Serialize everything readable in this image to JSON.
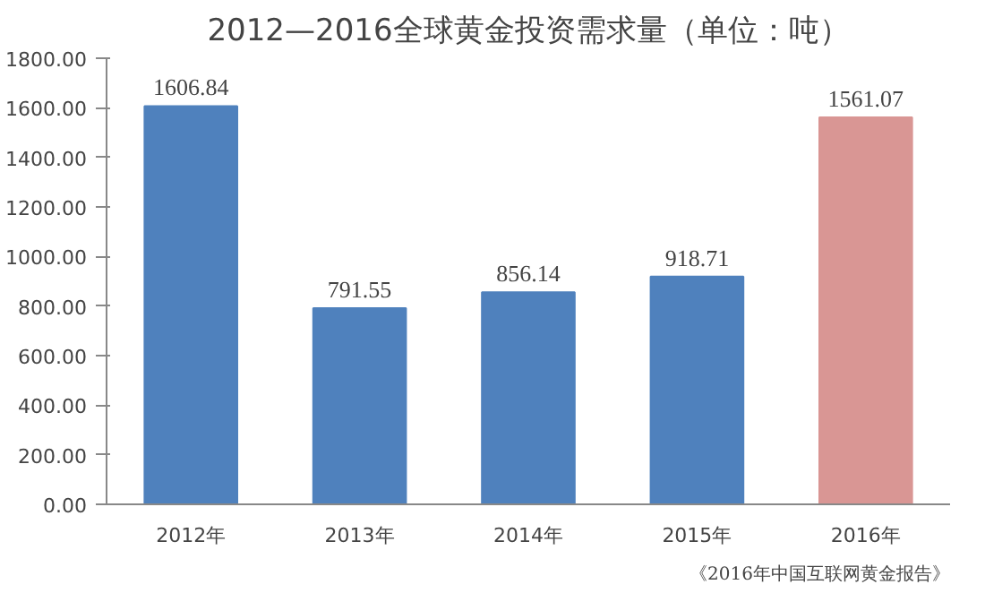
{
  "chart_data": {
    "type": "bar",
    "title": "2012—2016全球黄金投资需求量（单位：吨）",
    "categories": [
      "2012年",
      "2013年",
      "2014年",
      "2015年",
      "2016年"
    ],
    "values": [
      1606.84,
      791.55,
      856.14,
      918.71,
      1561.07
    ],
    "colors": [
      "#4f81bd",
      "#4f81bd",
      "#4f81bd",
      "#4f81bd",
      "#d99694"
    ],
    "data_labels": true,
    "ylim": [
      0,
      1800
    ],
    "yticks": [
      {
        "value": 0,
        "label": "0.00"
      },
      {
        "value": 200,
        "label": "200.00"
      },
      {
        "value": 400,
        "label": "400.00"
      },
      {
        "value": 600,
        "label": "600.00"
      },
      {
        "value": 800,
        "label": "800.00"
      },
      {
        "value": 1000,
        "label": "1000.00"
      },
      {
        "value": 1200,
        "label": "1200.00"
      },
      {
        "value": 1400,
        "label": "1400.00"
      },
      {
        "value": 1600,
        "label": "1600.00"
      },
      {
        "value": 1800,
        "label": "1800.00"
      }
    ],
    "grid": false,
    "annotations": [
      "《2016年中国互联网黄金报告》"
    ]
  }
}
